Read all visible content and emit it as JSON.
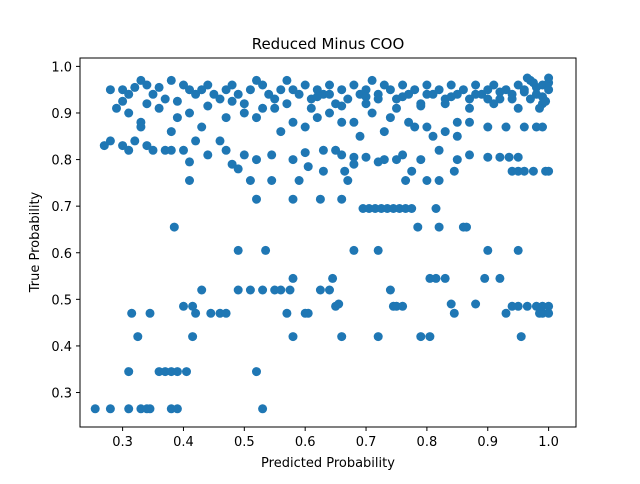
{
  "chart_data": {
    "type": "scatter",
    "title": "Reduced Minus COO",
    "xlabel": "Predicted Probability",
    "ylabel": "True Probability",
    "xlim": [
      0.23,
      1.045
    ],
    "ylim": [
      0.226,
      1.018
    ],
    "x_ticks": [
      0.3,
      0.4,
      0.5,
      0.6,
      0.7,
      0.8,
      0.9,
      1.0
    ],
    "y_ticks": [
      0.3,
      0.4,
      0.5,
      0.6,
      0.7,
      0.8,
      0.9,
      1.0
    ],
    "x_tick_labels": [
      "0.3",
      "0.4",
      "0.5",
      "0.6",
      "0.7",
      "0.8",
      "0.9",
      "1.0"
    ],
    "y_tick_labels": [
      "0.3",
      "0.4",
      "0.5",
      "0.6",
      "0.7",
      "0.8",
      "0.9",
      "1.0"
    ],
    "grid": false,
    "marker_color": "#1f77b4",
    "points": [
      [
        0.255,
        0.265
      ],
      [
        0.28,
        0.265
      ],
      [
        0.31,
        0.265
      ],
      [
        0.33,
        0.265
      ],
      [
        0.34,
        0.265
      ],
      [
        0.345,
        0.265
      ],
      [
        0.38,
        0.265
      ],
      [
        0.39,
        0.265
      ],
      [
        0.53,
        0.265
      ],
      [
        0.31,
        0.345
      ],
      [
        0.36,
        0.345
      ],
      [
        0.37,
        0.345
      ],
      [
        0.38,
        0.345
      ],
      [
        0.39,
        0.345
      ],
      [
        0.405,
        0.345
      ],
      [
        0.52,
        0.345
      ],
      [
        0.325,
        0.42
      ],
      [
        0.415,
        0.42
      ],
      [
        0.58,
        0.42
      ],
      [
        0.66,
        0.42
      ],
      [
        0.72,
        0.42
      ],
      [
        0.79,
        0.42
      ],
      [
        0.805,
        0.42
      ],
      [
        0.955,
        0.42
      ],
      [
        0.315,
        0.47
      ],
      [
        0.345,
        0.47
      ],
      [
        0.42,
        0.47
      ],
      [
        0.445,
        0.47
      ],
      [
        0.46,
        0.47
      ],
      [
        0.47,
        0.47
      ],
      [
        0.57,
        0.47
      ],
      [
        0.6,
        0.47
      ],
      [
        0.605,
        0.47
      ],
      [
        0.845,
        0.47
      ],
      [
        0.93,
        0.47
      ],
      [
        0.985,
        0.47
      ],
      [
        0.99,
        0.47
      ],
      [
        1.0,
        0.47
      ],
      [
        0.4,
        0.485
      ],
      [
        0.415,
        0.485
      ],
      [
        0.65,
        0.485
      ],
      [
        0.745,
        0.485
      ],
      [
        0.75,
        0.485
      ],
      [
        0.76,
        0.485
      ],
      [
        0.94,
        0.485
      ],
      [
        0.95,
        0.485
      ],
      [
        0.965,
        0.485
      ],
      [
        0.98,
        0.485
      ],
      [
        0.99,
        0.485
      ],
      [
        1.0,
        0.485
      ],
      [
        0.43,
        0.52
      ],
      [
        0.49,
        0.52
      ],
      [
        0.51,
        0.52
      ],
      [
        0.53,
        0.52
      ],
      [
        0.55,
        0.52
      ],
      [
        0.56,
        0.52
      ],
      [
        0.575,
        0.52
      ],
      [
        0.625,
        0.52
      ],
      [
        0.64,
        0.52
      ],
      [
        0.655,
        0.49
      ],
      [
        0.74,
        0.52
      ],
      [
        0.84,
        0.49
      ],
      [
        0.88,
        0.49
      ],
      [
        0.58,
        0.545
      ],
      [
        0.645,
        0.545
      ],
      [
        0.805,
        0.545
      ],
      [
        0.815,
        0.545
      ],
      [
        0.83,
        0.545
      ],
      [
        0.895,
        0.545
      ],
      [
        0.92,
        0.545
      ],
      [
        0.49,
        0.605
      ],
      [
        0.535,
        0.605
      ],
      [
        0.68,
        0.605
      ],
      [
        0.72,
        0.605
      ],
      [
        0.9,
        0.605
      ],
      [
        0.95,
        0.605
      ],
      [
        0.385,
        0.655
      ],
      [
        0.785,
        0.655
      ],
      [
        0.82,
        0.655
      ],
      [
        0.86,
        0.655
      ],
      [
        0.865,
        0.655
      ],
      [
        0.695,
        0.695
      ],
      [
        0.705,
        0.695
      ],
      [
        0.715,
        0.695
      ],
      [
        0.725,
        0.695
      ],
      [
        0.735,
        0.695
      ],
      [
        0.745,
        0.695
      ],
      [
        0.755,
        0.695
      ],
      [
        0.765,
        0.695
      ],
      [
        0.775,
        0.695
      ],
      [
        0.815,
        0.695
      ],
      [
        0.52,
        0.715
      ],
      [
        0.58,
        0.715
      ],
      [
        0.625,
        0.715
      ],
      [
        0.66,
        0.715
      ],
      [
        0.41,
        0.755
      ],
      [
        0.51,
        0.755
      ],
      [
        0.545,
        0.755
      ],
      [
        0.59,
        0.755
      ],
      [
        0.67,
        0.755
      ],
      [
        0.765,
        0.755
      ],
      [
        0.8,
        0.755
      ],
      [
        0.82,
        0.755
      ],
      [
        0.63,
        0.775
      ],
      [
        0.665,
        0.775
      ],
      [
        0.775,
        0.775
      ],
      [
        0.845,
        0.775
      ],
      [
        0.94,
        0.775
      ],
      [
        0.95,
        0.775
      ],
      [
        0.96,
        0.775
      ],
      [
        0.975,
        0.775
      ],
      [
        0.995,
        0.775
      ],
      [
        1.0,
        0.775
      ],
      [
        0.27,
        0.83
      ],
      [
        0.28,
        0.84
      ],
      [
        0.3,
        0.83
      ],
      [
        0.31,
        0.82
      ],
      [
        0.32,
        0.84
      ],
      [
        0.34,
        0.83
      ],
      [
        0.35,
        0.82
      ],
      [
        0.37,
        0.82
      ],
      [
        0.38,
        0.82
      ],
      [
        0.4,
        0.82
      ],
      [
        0.42,
        0.84
      ],
      [
        0.44,
        0.81
      ],
      [
        0.47,
        0.82
      ],
      [
        0.5,
        0.81
      ],
      [
        0.52,
        0.8
      ],
      [
        0.545,
        0.81
      ],
      [
        0.58,
        0.8
      ],
      [
        0.6,
        0.815
      ],
      [
        0.63,
        0.82
      ],
      [
        0.65,
        0.82
      ],
      [
        0.66,
        0.81
      ],
      [
        0.68,
        0.805
      ],
      [
        0.7,
        0.805
      ],
      [
        0.73,
        0.8
      ],
      [
        0.75,
        0.8
      ],
      [
        0.76,
        0.81
      ],
      [
        0.79,
        0.8
      ],
      [
        0.82,
        0.82
      ],
      [
        0.85,
        0.8
      ],
      [
        0.87,
        0.81
      ],
      [
        0.9,
        0.805
      ],
      [
        0.92,
        0.805
      ],
      [
        0.935,
        0.805
      ],
      [
        0.95,
        0.805
      ],
      [
        0.41,
        0.795
      ],
      [
        0.48,
        0.79
      ],
      [
        0.49,
        0.78
      ],
      [
        0.605,
        0.785
      ],
      [
        0.68,
        0.79
      ],
      [
        0.72,
        0.795
      ],
      [
        0.29,
        0.91
      ],
      [
        0.31,
        0.9
      ],
      [
        0.33,
        0.88
      ],
      [
        0.36,
        0.91
      ],
      [
        0.38,
        0.86
      ],
      [
        0.39,
        0.89
      ],
      [
        0.41,
        0.9
      ],
      [
        0.43,
        0.87
      ],
      [
        0.47,
        0.89
      ],
      [
        0.5,
        0.9
      ],
      [
        0.52,
        0.89
      ],
      [
        0.55,
        0.91
      ],
      [
        0.58,
        0.88
      ],
      [
        0.6,
        0.87
      ],
      [
        0.62,
        0.89
      ],
      [
        0.64,
        0.9
      ],
      [
        0.66,
        0.88
      ],
      [
        0.68,
        0.88
      ],
      [
        0.71,
        0.9
      ],
      [
        0.74,
        0.89
      ],
      [
        0.77,
        0.88
      ],
      [
        0.8,
        0.87
      ],
      [
        0.81,
        0.85
      ],
      [
        0.83,
        0.86
      ],
      [
        0.85,
        0.88
      ],
      [
        0.87,
        0.88
      ],
      [
        0.9,
        0.87
      ],
      [
        0.93,
        0.87
      ],
      [
        0.96,
        0.87
      ],
      [
        0.98,
        0.87
      ],
      [
        0.99,
        0.87
      ],
      [
        0.33,
        0.87
      ],
      [
        0.46,
        0.84
      ],
      [
        0.56,
        0.86
      ],
      [
        0.69,
        0.85
      ],
      [
        0.73,
        0.86
      ],
      [
        0.78,
        0.87
      ],
      [
        0.85,
        0.85
      ],
      [
        0.28,
        0.95
      ],
      [
        0.3,
        0.95
      ],
      [
        0.31,
        0.94
      ],
      [
        0.32,
        0.955
      ],
      [
        0.33,
        0.97
      ],
      [
        0.34,
        0.96
      ],
      [
        0.35,
        0.94
      ],
      [
        0.36,
        0.955
      ],
      [
        0.37,
        0.93
      ],
      [
        0.38,
        0.97
      ],
      [
        0.4,
        0.96
      ],
      [
        0.41,
        0.95
      ],
      [
        0.42,
        0.94
      ],
      [
        0.43,
        0.95
      ],
      [
        0.44,
        0.96
      ],
      [
        0.45,
        0.94
      ],
      [
        0.46,
        0.93
      ],
      [
        0.47,
        0.95
      ],
      [
        0.48,
        0.96
      ],
      [
        0.49,
        0.94
      ],
      [
        0.5,
        0.92
      ],
      [
        0.51,
        0.95
      ],
      [
        0.52,
        0.97
      ],
      [
        0.53,
        0.96
      ],
      [
        0.54,
        0.94
      ],
      [
        0.55,
        0.93
      ],
      [
        0.56,
        0.95
      ],
      [
        0.57,
        0.97
      ],
      [
        0.58,
        0.95
      ],
      [
        0.59,
        0.94
      ],
      [
        0.6,
        0.96
      ],
      [
        0.61,
        0.93
      ],
      [
        0.62,
        0.95
      ],
      [
        0.63,
        0.94
      ],
      [
        0.64,
        0.96
      ],
      [
        0.65,
        0.92
      ],
      [
        0.66,
        0.95
      ],
      [
        0.67,
        0.93
      ],
      [
        0.68,
        0.96
      ],
      [
        0.69,
        0.94
      ],
      [
        0.7,
        0.95
      ],
      [
        0.71,
        0.97
      ],
      [
        0.72,
        0.94
      ],
      [
        0.73,
        0.96
      ],
      [
        0.74,
        0.95
      ],
      [
        0.75,
        0.93
      ],
      [
        0.76,
        0.96
      ],
      [
        0.77,
        0.94
      ],
      [
        0.78,
        0.95
      ],
      [
        0.79,
        0.92
      ],
      [
        0.8,
        0.96
      ],
      [
        0.81,
        0.94
      ],
      [
        0.82,
        0.95
      ],
      [
        0.83,
        0.93
      ],
      [
        0.84,
        0.96
      ],
      [
        0.85,
        0.94
      ],
      [
        0.86,
        0.95
      ],
      [
        0.87,
        0.93
      ],
      [
        0.88,
        0.96
      ],
      [
        0.89,
        0.94
      ],
      [
        0.9,
        0.95
      ],
      [
        0.91,
        0.96
      ],
      [
        0.92,
        0.93
      ],
      [
        0.93,
        0.95
      ],
      [
        0.94,
        0.94
      ],
      [
        0.95,
        0.96
      ],
      [
        0.96,
        0.95
      ],
      [
        0.97,
        0.97
      ],
      [
        0.98,
        0.94
      ],
      [
        0.99,
        0.96
      ],
      [
        1.0,
        0.95
      ],
      [
        0.3,
        0.925
      ],
      [
        0.34,
        0.92
      ],
      [
        0.39,
        0.925
      ],
      [
        0.44,
        0.915
      ],
      [
        0.48,
        0.925
      ],
      [
        0.53,
        0.91
      ],
      [
        0.57,
        0.92
      ],
      [
        0.61,
        0.91
      ],
      [
        0.66,
        0.915
      ],
      [
        0.7,
        0.92
      ],
      [
        0.75,
        0.91
      ],
      [
        0.79,
        0.915
      ],
      [
        0.83,
        0.92
      ],
      [
        0.87,
        0.91
      ],
      [
        0.91,
        0.92
      ],
      [
        0.95,
        0.91
      ],
      [
        0.99,
        0.92
      ],
      [
        0.62,
        0.935
      ],
      [
        0.64,
        0.94
      ],
      [
        0.7,
        0.935
      ],
      [
        0.72,
        0.93
      ],
      [
        0.76,
        0.935
      ],
      [
        0.8,
        0.94
      ],
      [
        0.84,
        0.935
      ],
      [
        0.88,
        0.94
      ],
      [
        0.9,
        0.93
      ],
      [
        0.92,
        0.945
      ],
      [
        0.94,
        0.93
      ],
      [
        0.96,
        0.945
      ],
      [
        0.97,
        0.93
      ],
      [
        0.98,
        0.955
      ],
      [
        0.99,
        0.935
      ],
      [
        1.0,
        0.965
      ],
      [
        1.0,
        0.975
      ],
      [
        0.995,
        0.925
      ],
      [
        0.985,
        0.91
      ],
      [
        0.975,
        0.965
      ],
      [
        0.965,
        0.975
      ]
    ]
  }
}
